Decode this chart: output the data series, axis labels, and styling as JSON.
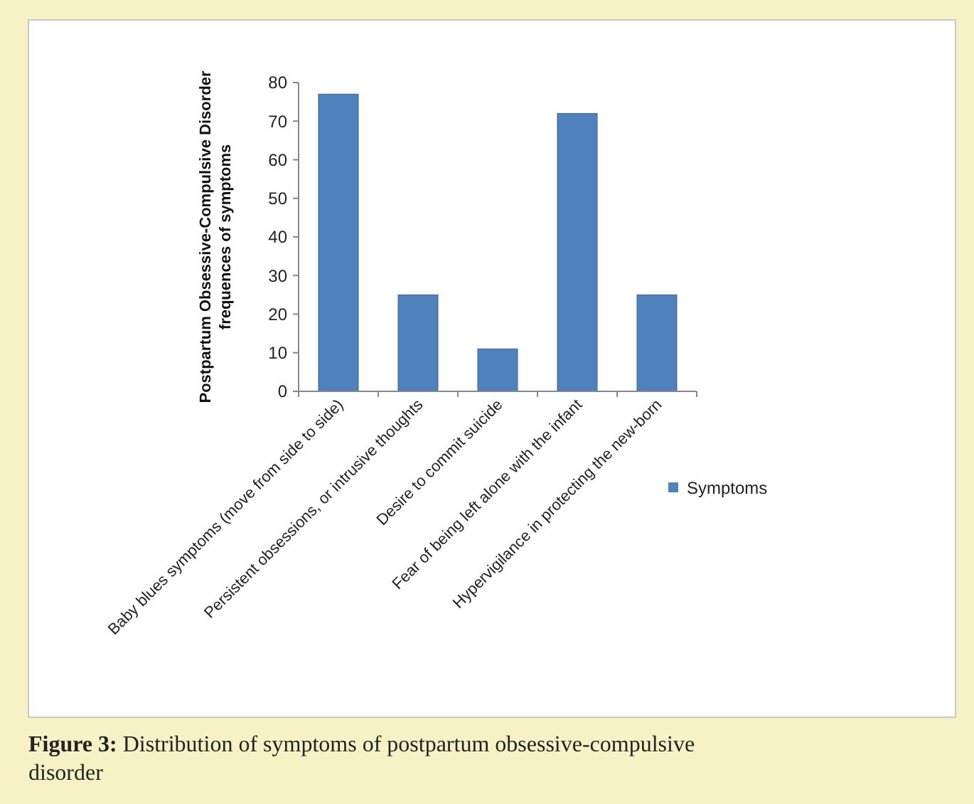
{
  "chart_data": {
    "type": "bar",
    "title": "Figure 3: Distribution of symptoms of postpartum obsessive-compulsive disorder",
    "ylabel": "Postpartum Obsessive-Compulsive Disorder frequences of symptoms",
    "categories": [
      "Baby blues symptoms (move from side to side)",
      "Persistent obsessions, or intrusive thoughts",
      "Desire to commit suicide",
      "Fear of being left alone with the infant",
      "Hypervigilance in protecting the new-born"
    ],
    "series": [
      {
        "name": "Symptoms",
        "color": "#4f81bd",
        "values": [
          77,
          25,
          11,
          72,
          25
        ]
      }
    ],
    "ylim": [
      0,
      80
    ],
    "yticks": [
      0,
      10,
      20,
      30,
      40,
      50,
      60,
      70,
      80
    ],
    "grid": false,
    "legend": "right"
  }
}
